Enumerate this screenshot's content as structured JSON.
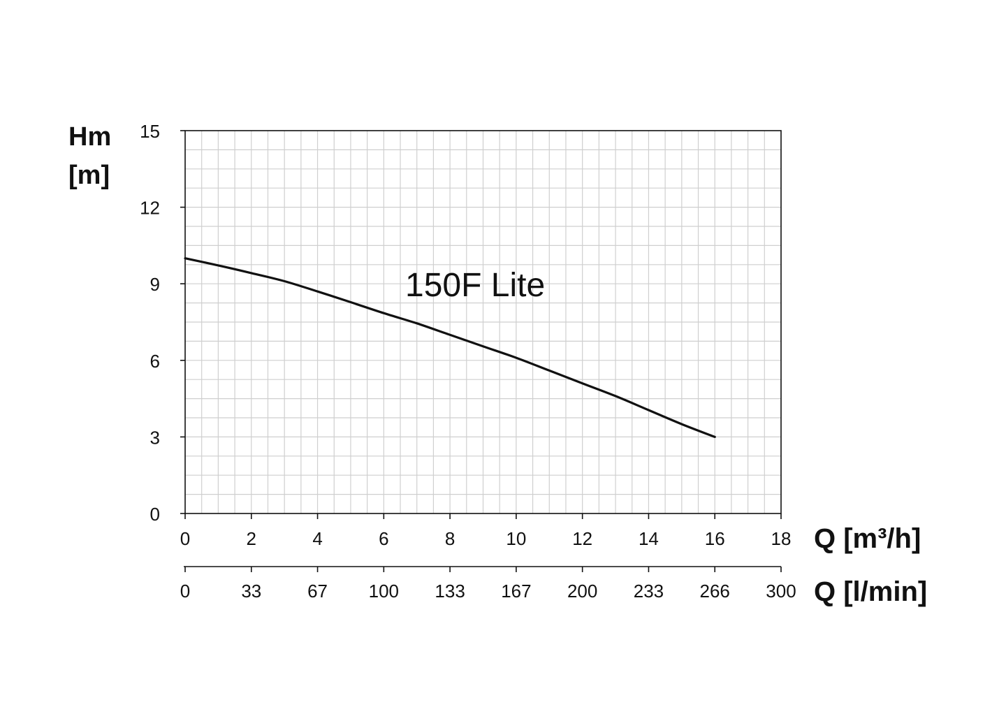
{
  "chart_data": {
    "type": "line",
    "ylabel_line1": "Hm",
    "ylabel_line2": "[m]",
    "xlabel_primary": "Q [m³/h]",
    "xlabel_secondary": "Q [l/min]",
    "annotation": "150F Lite",
    "xlim": [
      0,
      18
    ],
    "ylim": [
      0,
      15
    ],
    "x_ticks": [
      "0",
      "2",
      "4",
      "6",
      "8",
      "10",
      "12",
      "14",
      "16",
      "18"
    ],
    "x_secondary_ticks": [
      "0",
      "33",
      "67",
      "100",
      "133",
      "167",
      "200",
      "233",
      "266",
      "300"
    ],
    "y_ticks": [
      "0",
      "3",
      "6",
      "9",
      "12",
      "15"
    ],
    "grid": true,
    "series": [
      {
        "x": [
          0,
          1,
          2,
          3,
          4,
          5,
          6,
          7,
          8,
          9,
          10,
          11,
          12,
          13,
          14,
          15,
          16
        ],
        "y": [
          10.0,
          9.72,
          9.42,
          9.1,
          8.7,
          8.28,
          7.85,
          7.45,
          7.0,
          6.55,
          6.1,
          5.6,
          5.1,
          4.6,
          4.05,
          3.5,
          3.0
        ]
      }
    ],
    "colors": {
      "line": "#111111",
      "grid": "#cfcfcf",
      "axis": "#111111"
    }
  }
}
